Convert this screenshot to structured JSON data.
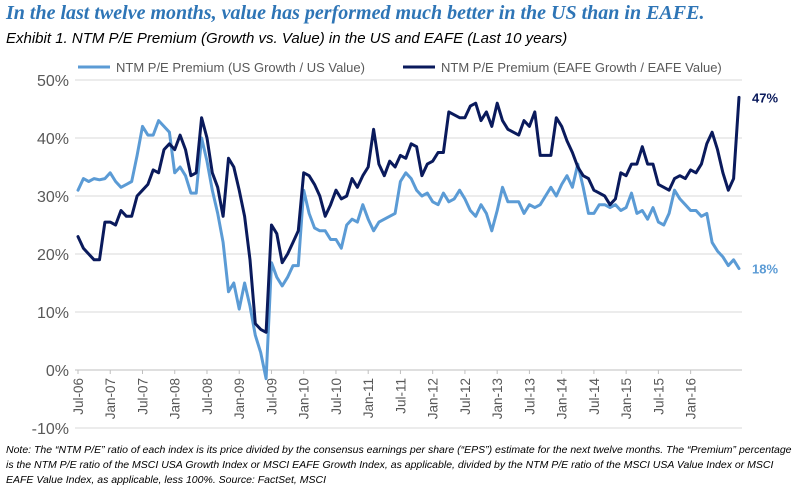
{
  "headline": "In the last twelve months, value has performed much better in the US than in EAFE.",
  "exhibit_title": "Exhibit 1. NTM P/E Premium (Growth vs. Value) in the US and EAFE (Last 10 years)",
  "note": "Note: The “NTM P/E” ratio of each index is its price divided by the consensus earnings per share (“EPS”) estimate for the next twelve months.  The “Premium” percentage is the NTM P/E ratio of the MSCI USA Growth Index or MSCI EAFE Growth Index, as applicable, divided by the NTM P/E ratio of the MSCI USA Value Index or MSCI EAFE Value Index, as applicable, less 100%.  Source: FactSet, MSCI",
  "chart_data": {
    "type": "line",
    "title": "",
    "xlabel": "",
    "ylabel": "",
    "ylim": [
      -10,
      50
    ],
    "yticks": [
      -10,
      0,
      10,
      20,
      30,
      40,
      50
    ],
    "ytick_labels": [
      "-10%",
      "0%",
      "10%",
      "20%",
      "30%",
      "40%",
      "50%"
    ],
    "xtick_labels": [
      "Jul-06",
      "Jan-07",
      "Jul-07",
      "Jan-08",
      "Jul-08",
      "Jan-09",
      "Jul-09",
      "Jan-10",
      "Jul-10",
      "Jan-11",
      "Jul-11",
      "Jan-12",
      "Jul-12",
      "Jan-13",
      "Jul-13",
      "Jan-14",
      "Jul-14",
      "Jan-15",
      "Jul-15",
      "Jan-16"
    ],
    "x_start": "Jul-06",
    "x_end": "Oct-16",
    "frequency": "monthly",
    "grid": "horizontal",
    "legend_position": "top",
    "series": [
      {
        "name": "NTM P/E Premium (US Growth / US Value)",
        "color": "#5b9bd5",
        "end_label": "18%",
        "values": [
          31,
          33,
          32.5,
          33,
          32.8,
          33,
          34,
          32.5,
          31.5,
          32,
          32.5,
          37,
          42,
          40.5,
          40.5,
          43,
          42,
          41,
          34,
          35,
          33.5,
          30.5,
          30.5,
          40,
          36,
          31,
          27,
          22,
          13.5,
          15,
          10.5,
          15,
          11,
          6,
          3,
          -1.5,
          18.5,
          16,
          14.5,
          16,
          18,
          18,
          31,
          27,
          24.5,
          24,
          24,
          22.5,
          22.5,
          21,
          25,
          26,
          25.5,
          28.5,
          26,
          24,
          25.5,
          26,
          26.5,
          27,
          32.5,
          34,
          33,
          31,
          30,
          30.5,
          29,
          28.5,
          30.5,
          29,
          29.5,
          31,
          29.5,
          27.5,
          26.5,
          28.5,
          27,
          24,
          27.5,
          31.5,
          29,
          29,
          29,
          27,
          28.5,
          28,
          28.5,
          30,
          31.5,
          30,
          32,
          33.5,
          31.5,
          35.5,
          31.5,
          27,
          27,
          28.5,
          28.5,
          28,
          28.5,
          27.5,
          28,
          30.5,
          27,
          27.5,
          26,
          28,
          25.5,
          25,
          27,
          31,
          29.5,
          28.5,
          27.5,
          27.5,
          26.5,
          27,
          22,
          20.5,
          19.5,
          18,
          19,
          17.5
        ]
      },
      {
        "name": "NTM P/E Premium (EAFE Growth / EAFE Value)",
        "color": "#0a1a5c",
        "end_label": "47%",
        "values": [
          23,
          21,
          20,
          19,
          19,
          25.5,
          25.5,
          25,
          27.5,
          26.5,
          26.5,
          30,
          31,
          32,
          34.5,
          34,
          38,
          39,
          38,
          40.5,
          38,
          33.5,
          34,
          43.5,
          40,
          34,
          31.5,
          26.5,
          36.5,
          35,
          31,
          26.5,
          19,
          8,
          7,
          6.5,
          25,
          23.5,
          18.5,
          20,
          22,
          24,
          34,
          33.5,
          32,
          30,
          26.5,
          28.5,
          31,
          29.5,
          30,
          33,
          31.5,
          33.5,
          35,
          41.5,
          35.5,
          33.5,
          36,
          35,
          37,
          36.5,
          39,
          38.5,
          33.5,
          35.5,
          36,
          37.5,
          37.5,
          44.5,
          44,
          43.5,
          43.5,
          45.5,
          46,
          43,
          44.5,
          42,
          46,
          43,
          41.5,
          41,
          40.5,
          43,
          42,
          44.5,
          37,
          37,
          37,
          43.5,
          42,
          39.5,
          37.5,
          35,
          33.5,
          33,
          31,
          30.5,
          30,
          28.5,
          29.5,
          34,
          33.5,
          35.5,
          35.5,
          38.5,
          35.5,
          35.5,
          32,
          31.5,
          31,
          33,
          33.5,
          33,
          34.5,
          34,
          35.5,
          39,
          41,
          38,
          34,
          31,
          33,
          47
        ]
      }
    ]
  }
}
